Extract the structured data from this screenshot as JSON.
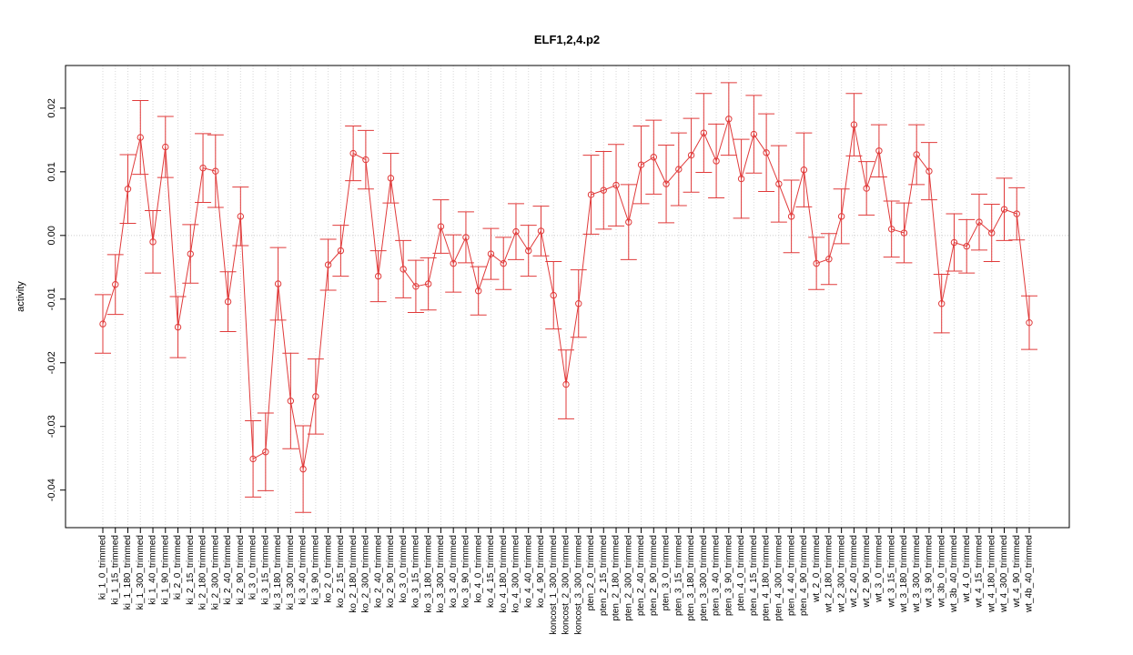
{
  "chart_data": {
    "type": "line",
    "title": "ELF1,2,4.p2",
    "y_label": "activity",
    "categories": [
      "ki_1_0_trimmed",
      "ki_1_15_trimmed",
      "ki_1_180_trimmed",
      "ki_1_300_trimmed",
      "ki_1_40_trimmed",
      "ki_1_90_trimmed",
      "ki_2_0_trimmed",
      "ki_2_15_trimmed",
      "ki_2_180_trimmed",
      "ki_2_300_trimmed",
      "ki_2_40_trimmed",
      "ki_2_90_trimmed",
      "ki_3_0_trimmed",
      "ki_3_15_trimmed",
      "ki_3_180_trimmed",
      "ki_3_300_trimmed",
      "ki_3_40_trimmed",
      "ki_3_90_trimmed",
      "ko_2_0_trimmed",
      "ko_2_15_trimmed",
      "ko_2_180_trimmed",
      "ko_2_300_trimmed",
      "ko_2_40_trimmed",
      "ko_2_90_trimmed",
      "ko_3_0_trimmed",
      "ko_3_15_trimmed",
      "ko_3_180_trimmed",
      "ko_3_300_trimmed",
      "ko_3_40_trimmed",
      "ko_3_90_trimmed",
      "ko_4_0_trimmed",
      "ko_4_15_trimmed",
      "ko_4_180_trimmed",
      "ko_4_300_trimmed",
      "ko_4_40_trimmed",
      "ko_4_90_trimmed",
      "koncost_1_300_trimmed",
      "koncost_2_300_trimmed",
      "koncost_3_300_trimmed",
      "pten_2_0_trimmed",
      "pten_2_15_trimmed",
      "pten_2_180_trimmed",
      "pten_2_300_trimmed",
      "pten_2_40_trimmed",
      "pten_2_90_trimmed",
      "pten_3_0_trimmed",
      "pten_3_15_trimmed",
      "pten_3_180_trimmed",
      "pten_3_300_trimmed",
      "pten_3_40_trimmed",
      "pten_3_90_trimmed",
      "pten_4_0_trimmed",
      "pten_4_15_trimmed",
      "pten_4_180_trimmed",
      "pten_4_300_trimmed",
      "pten_4_40_trimmed",
      "pten_4_90_trimmed",
      "wt_2_0_trimmed",
      "wt_2_180_trimmed",
      "wt_2_300_trimmed",
      "wt_2_40_trimmed",
      "wt_2_90_trimmed",
      "wt_3_0_trimmed",
      "wt_3_15_trimmed",
      "wt_3_180_trimmed",
      "wt_3_300_trimmed",
      "wt_3_90_trimmed",
      "wt_3b_0_trimmed",
      "wt_3b_40_trimmed",
      "wt_4_0_trimmed",
      "wt_4_15_trimmed",
      "wt_4_180_trimmed",
      "wt_4_300_trimmed",
      "wt_4_90_trimmed",
      "wt_4b_40_trimmed"
    ],
    "series": [
      {
        "color": "#e03a3a",
        "values": [
          -0.0139,
          -0.0077,
          0.0073,
          0.0154,
          -0.001,
          0.0139,
          -0.0144,
          -0.0029,
          0.0106,
          0.0101,
          -0.0104,
          0.003,
          -0.0351,
          -0.034,
          -0.0076,
          -0.026,
          -0.0367,
          -0.0253,
          -0.0046,
          -0.0024,
          0.0129,
          0.0119,
          -0.0064,
          0.009,
          -0.0053,
          -0.008,
          -0.0076,
          0.0014,
          -0.0044,
          -0.0003,
          -0.0087,
          -0.0029,
          -0.0044,
          0.0006,
          -0.0024,
          0.0007,
          -0.0094,
          -0.0234,
          -0.0107,
          0.0064,
          0.0071,
          0.0079,
          0.0021,
          0.0111,
          0.0123,
          0.0081,
          0.0104,
          0.0126,
          0.0161,
          0.0117,
          0.0183,
          0.0089,
          0.0159,
          0.013,
          0.0081,
          0.003,
          0.0103,
          -0.0044,
          -0.0037,
          0.003,
          0.0174,
          0.0074,
          0.0133,
          0.001,
          0.0004,
          0.0127,
          0.0101,
          -0.0107,
          -0.0011,
          -0.0017,
          0.0021,
          0.0004,
          0.0041,
          0.0034,
          -0.0137
        ],
        "errors": [
          0.0046,
          0.0047,
          0.0054,
          0.0058,
          0.0049,
          0.0048,
          0.0048,
          0.0046,
          0.0054,
          0.0057,
          0.0047,
          0.0046,
          0.006,
          0.0061,
          0.0057,
          0.0075,
          0.0068,
          0.0059,
          0.004,
          0.004,
          0.0043,
          0.0046,
          0.004,
          0.0039,
          0.0045,
          0.0041,
          0.0041,
          0.0042,
          0.0045,
          0.004,
          0.0038,
          0.004,
          0.0041,
          0.0044,
          0.004,
          0.0039,
          0.0053,
          0.0054,
          0.0053,
          0.0062,
          0.0061,
          0.0064,
          0.0059,
          0.0061,
          0.0058,
          0.0061,
          0.0057,
          0.0058,
          0.0062,
          0.0058,
          0.0057,
          0.0062,
          0.0061,
          0.0061,
          0.006,
          0.0057,
          0.0058,
          0.0041,
          0.004,
          0.0043,
          0.0049,
          0.0042,
          0.0041,
          0.0044,
          0.0047,
          0.0047,
          0.0045,
          0.0046,
          0.0045,
          0.0042,
          0.0044,
          0.0045,
          0.0049,
          0.0041,
          0.0042
        ]
      }
    ],
    "ylim": [
      -0.0459,
      0.0267
    ],
    "yticks": [
      -0.04,
      -0.03,
      -0.02,
      -0.01,
      {
        "value": 0,
        "label": "0.00"
      },
      0.01,
      0.02
    ],
    "hline": 0,
    "grid": true
  }
}
